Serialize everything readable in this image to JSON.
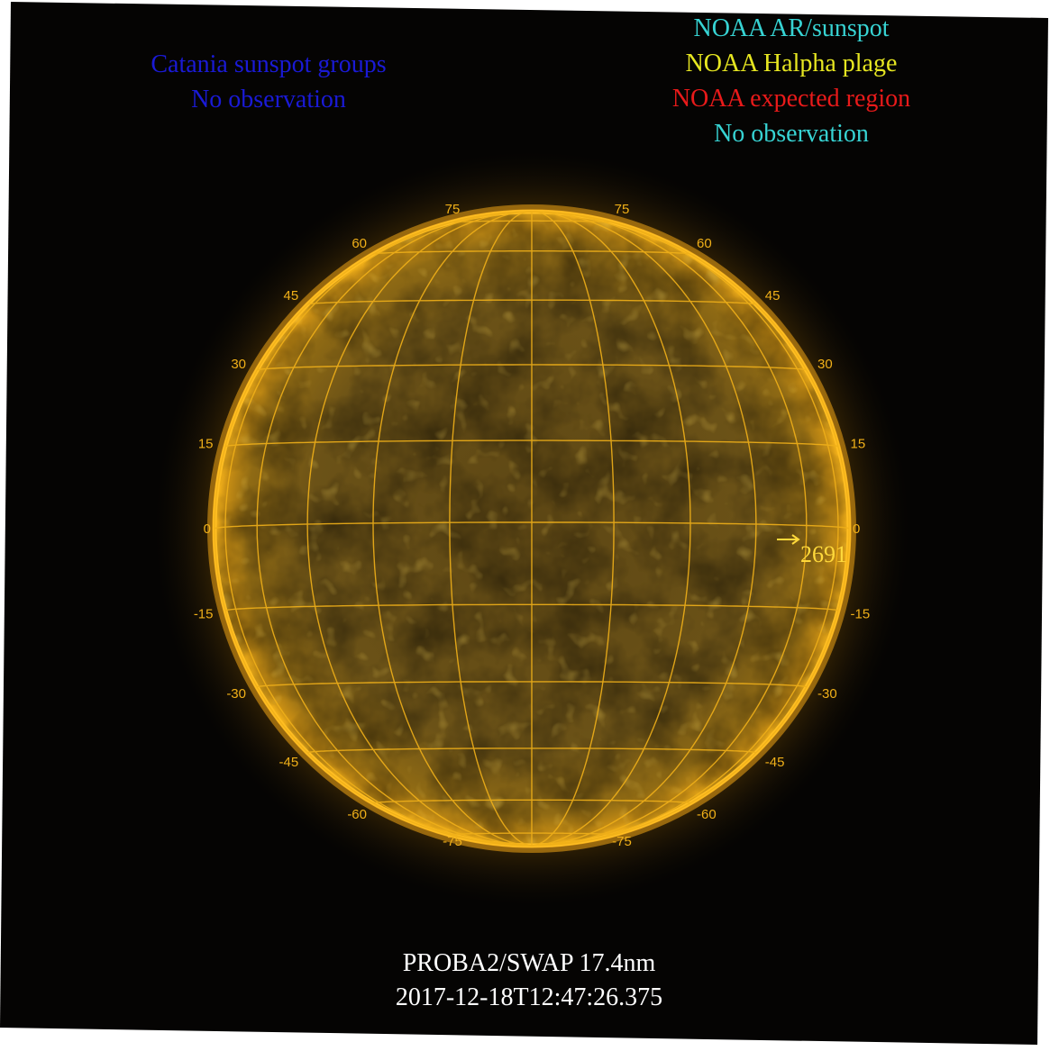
{
  "legend_left": {
    "title": "Catania sunspot groups",
    "status": "No observation",
    "color": "#1a1ad6"
  },
  "legend_right": {
    "items": [
      {
        "label": "NOAA AR/sunspot",
        "color": "#37d3d3"
      },
      {
        "label": "NOAA Halpha plage",
        "color": "#e6e621"
      },
      {
        "label": "NOAA expected region",
        "color": "#e81a1a"
      },
      {
        "label": "No observation",
        "color": "#37d3d3"
      }
    ]
  },
  "image": {
    "instrument": "PROBA2/SWAP 17.4nm",
    "timestamp": "2017-12-18T12:47:26.375",
    "colors": {
      "background": "#050403",
      "disk_center": "#5a4412",
      "limb": "#ffb81a",
      "grid": "#f0b019",
      "corona": "#c98a10"
    }
  },
  "grid": {
    "latitude_labels": [
      "75",
      "60",
      "45",
      "30",
      "15",
      "0",
      "-15",
      "-30",
      "-45",
      "-60",
      "-75"
    ]
  },
  "active_region": {
    "number": "2691",
    "icon": "arrow-right-icon",
    "color": "#ffd93b"
  }
}
